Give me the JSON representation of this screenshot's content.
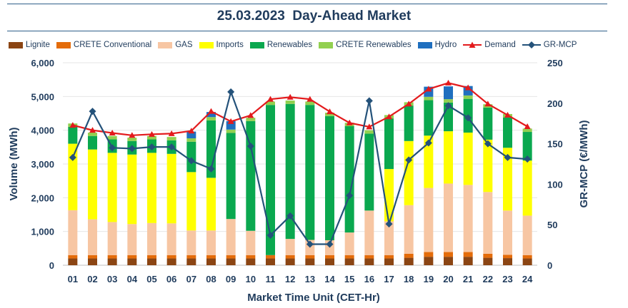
{
  "chart_data": {
    "type": "bar",
    "title": "25.03.2023  Day-Ahead Market",
    "xlabel": "Market Time Unit (CET-Hr)",
    "ylabel": "Volume (MWh)",
    "y2label": "GR-MCP (€/MWh)",
    "ylim": [
      0,
      6000
    ],
    "y2lim": [
      0,
      250
    ],
    "yticks": [
      "0",
      "1,000",
      "2,000",
      "3,000",
      "4,000",
      "5,000",
      "6,000"
    ],
    "y2ticks": [
      "0",
      "50",
      "100",
      "150",
      "200",
      "250"
    ],
    "categories": [
      "01",
      "02",
      "03",
      "04",
      "05",
      "06",
      "07",
      "08",
      "09",
      "10",
      "11",
      "12",
      "13",
      "14",
      "15",
      "16",
      "17",
      "18",
      "19",
      "20",
      "21",
      "22",
      "23",
      "24"
    ],
    "series": [
      {
        "name": "Lignite",
        "color": "#8b4513",
        "kind": "bar",
        "values": [
          200,
          200,
          200,
          200,
          200,
          200,
          200,
          200,
          200,
          200,
          200,
          200,
          200,
          200,
          200,
          200,
          200,
          220,
          250,
          250,
          250,
          220,
          210,
          200
        ]
      },
      {
        "name": "CRETE Conventional",
        "color": "#e46c0a",
        "kind": "bar",
        "values": [
          100,
          100,
          100,
          100,
          100,
          100,
          100,
          100,
          100,
          100,
          100,
          100,
          100,
          100,
          100,
          100,
          100,
          120,
          140,
          140,
          140,
          120,
          100,
          100
        ]
      },
      {
        "name": "GAS",
        "color": "#f7c6a3",
        "kind": "bar",
        "values": [
          1330,
          1060,
          980,
          920,
          950,
          940,
          730,
          730,
          1070,
          720,
          0,
          480,
          450,
          440,
          670,
          1320,
          1000,
          1440,
          1900,
          2030,
          1990,
          1830,
          1310,
          1170
        ]
      },
      {
        "name": "Imports",
        "color": "#ffff00",
        "kind": "bar",
        "values": [
          1970,
          2070,
          2050,
          2060,
          2080,
          2060,
          1730,
          1560,
          0,
          0,
          0,
          0,
          0,
          0,
          0,
          0,
          1550,
          1900,
          1550,
          1550,
          1550,
          1550,
          1860,
          1630
        ]
      },
      {
        "name": "Renewables",
        "color": "#0aa84f",
        "kind": "bar",
        "values": [
          500,
          400,
          400,
          400,
          400,
          400,
          900,
          1700,
          2550,
          3250,
          4450,
          4000,
          4000,
          3680,
          3150,
          2280,
          1500,
          1050,
          1050,
          850,
          1000,
          950,
          900,
          850
        ]
      },
      {
        "name": "CRETE Renewables",
        "color": "#92d050",
        "kind": "bar",
        "values": [
          100,
          100,
          100,
          100,
          100,
          100,
          100,
          100,
          100,
          100,
          100,
          100,
          100,
          100,
          100,
          100,
          100,
          100,
          100,
          100,
          100,
          100,
          100,
          100
        ]
      },
      {
        "name": "Hydro",
        "color": "#1f6fbf",
        "kind": "bar",
        "values": [
          0,
          0,
          0,
          0,
          0,
          0,
          200,
          150,
          250,
          0,
          0,
          0,
          0,
          0,
          0,
          0,
          0,
          0,
          300,
          380,
          280,
          0,
          0,
          0
        ]
      },
      {
        "name": "Demand",
        "color": "#e31a1c",
        "kind": "line",
        "axis": "left",
        "marker": "triangle",
        "values": [
          4150,
          4000,
          3920,
          3850,
          3880,
          3900,
          3980,
          4560,
          4260,
          4440,
          4920,
          4980,
          4920,
          4550,
          4220,
          4100,
          4400,
          4780,
          5220,
          5400,
          5260,
          4780,
          4450,
          4110
        ]
      },
      {
        "name": "GR-MCP",
        "color": "#24527a",
        "kind": "line",
        "axis": "right",
        "marker": "diamond",
        "values": [
          133,
          190,
          145,
          144,
          146,
          146,
          129,
          119,
          214,
          147,
          37,
          61,
          26,
          26,
          86,
          203,
          51,
          130,
          151,
          197,
          182,
          150,
          133,
          131
        ]
      }
    ]
  }
}
